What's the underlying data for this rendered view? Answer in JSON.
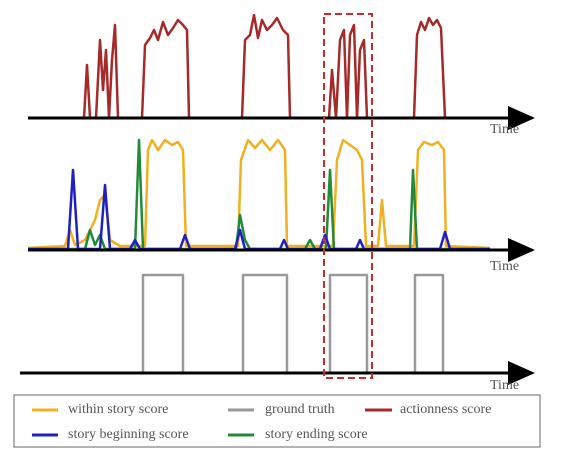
{
  "axes": [
    {
      "label": "Time"
    },
    {
      "label": "Time"
    },
    {
      "label": "Time"
    }
  ],
  "legend": [
    "within story score",
    "ground truth",
    "actionness score",
    "story beginning score",
    "story ending score"
  ]
}
